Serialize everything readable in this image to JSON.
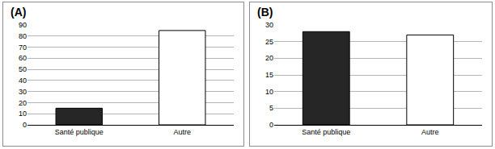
{
  "chart_data": [
    {
      "type": "bar",
      "title": "(A)",
      "categories": [
        "Santé publique",
        "Autre"
      ],
      "values": [
        15,
        85
      ],
      "colors": [
        "#262626",
        "#ffffff"
      ],
      "ylim": [
        0,
        90
      ],
      "yticks": [
        0,
        10,
        20,
        30,
        40,
        50,
        60,
        70,
        80,
        90
      ],
      "grid": true
    },
    {
      "type": "bar",
      "title": "(B)",
      "categories": [
        "Santé publique",
        "Autre"
      ],
      "values": [
        28,
        27
      ],
      "colors": [
        "#262626",
        "#ffffff"
      ],
      "ylim": [
        0,
        30
      ],
      "yticks": [
        0,
        5,
        10,
        15,
        20,
        25,
        30
      ],
      "grid": true
    }
  ]
}
